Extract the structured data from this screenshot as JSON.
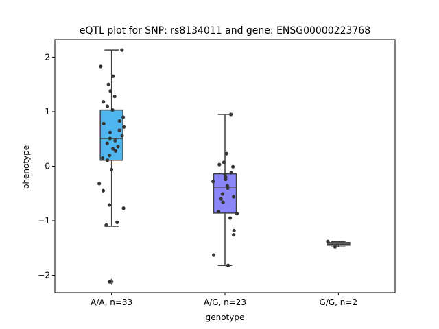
{
  "chart_data": {
    "type": "box",
    "title": "eQTL plot for SNP: rs8134011 and gene: ENSG00000223768",
    "xlabel": "genotype",
    "ylabel": "phenotype",
    "ylim": [
      -2.32,
      2.32
    ],
    "yticks": [
      -2,
      -1,
      0,
      1,
      2
    ],
    "ytick_labels": [
      "−2",
      "−1",
      "0",
      "1",
      "2"
    ],
    "categories": [
      "A/A, n=33",
      "A/G, n=23",
      "G/G, n=2"
    ],
    "colors": [
      "#4fb6f0",
      "#8a85f8",
      "#7d7d7d"
    ],
    "grid": false,
    "legend": "none",
    "boxes": [
      {
        "category": "A/A, n=33",
        "whisker_low": -1.1,
        "q1": 0.11,
        "median": 0.51,
        "q3": 1.03,
        "whisker_high": 2.13,
        "outliers": [
          -2.12
        ]
      },
      {
        "category": "A/G, n=23",
        "whisker_low": -1.82,
        "q1": -0.86,
        "median": -0.4,
        "q3": -0.14,
        "whisker_high": 0.95,
        "outliers": []
      },
      {
        "category": "G/G, n=2",
        "whisker_low": -1.48,
        "q1": -1.45,
        "median": -1.43,
        "q3": -1.4,
        "whisker_high": -1.38,
        "outliers": []
      }
    ],
    "points": [
      [
        2.13,
        1.83,
        1.65,
        1.5,
        1.38,
        1.28,
        1.18,
        1.1,
        1.03,
        0.9,
        0.83,
        0.78,
        0.72,
        0.66,
        0.62,
        0.56,
        0.51,
        0.47,
        0.42,
        0.36,
        0.32,
        0.28,
        0.2,
        0.15,
        0.11,
        -0.06,
        -0.32,
        -0.45,
        -0.71,
        -0.77,
        -1.03,
        -1.08,
        -2.12
      ],
      [
        0.95,
        0.23,
        0.07,
        0.03,
        -0.01,
        -0.12,
        -0.15,
        -0.2,
        -0.24,
        -0.28,
        -0.36,
        -0.4,
        -0.51,
        -0.56,
        -0.6,
        -0.66,
        -0.83,
        -0.87,
        -0.95,
        -1.18,
        -1.26,
        -1.63,
        -1.82
      ],
      [
        -1.38,
        -1.48
      ]
    ]
  }
}
